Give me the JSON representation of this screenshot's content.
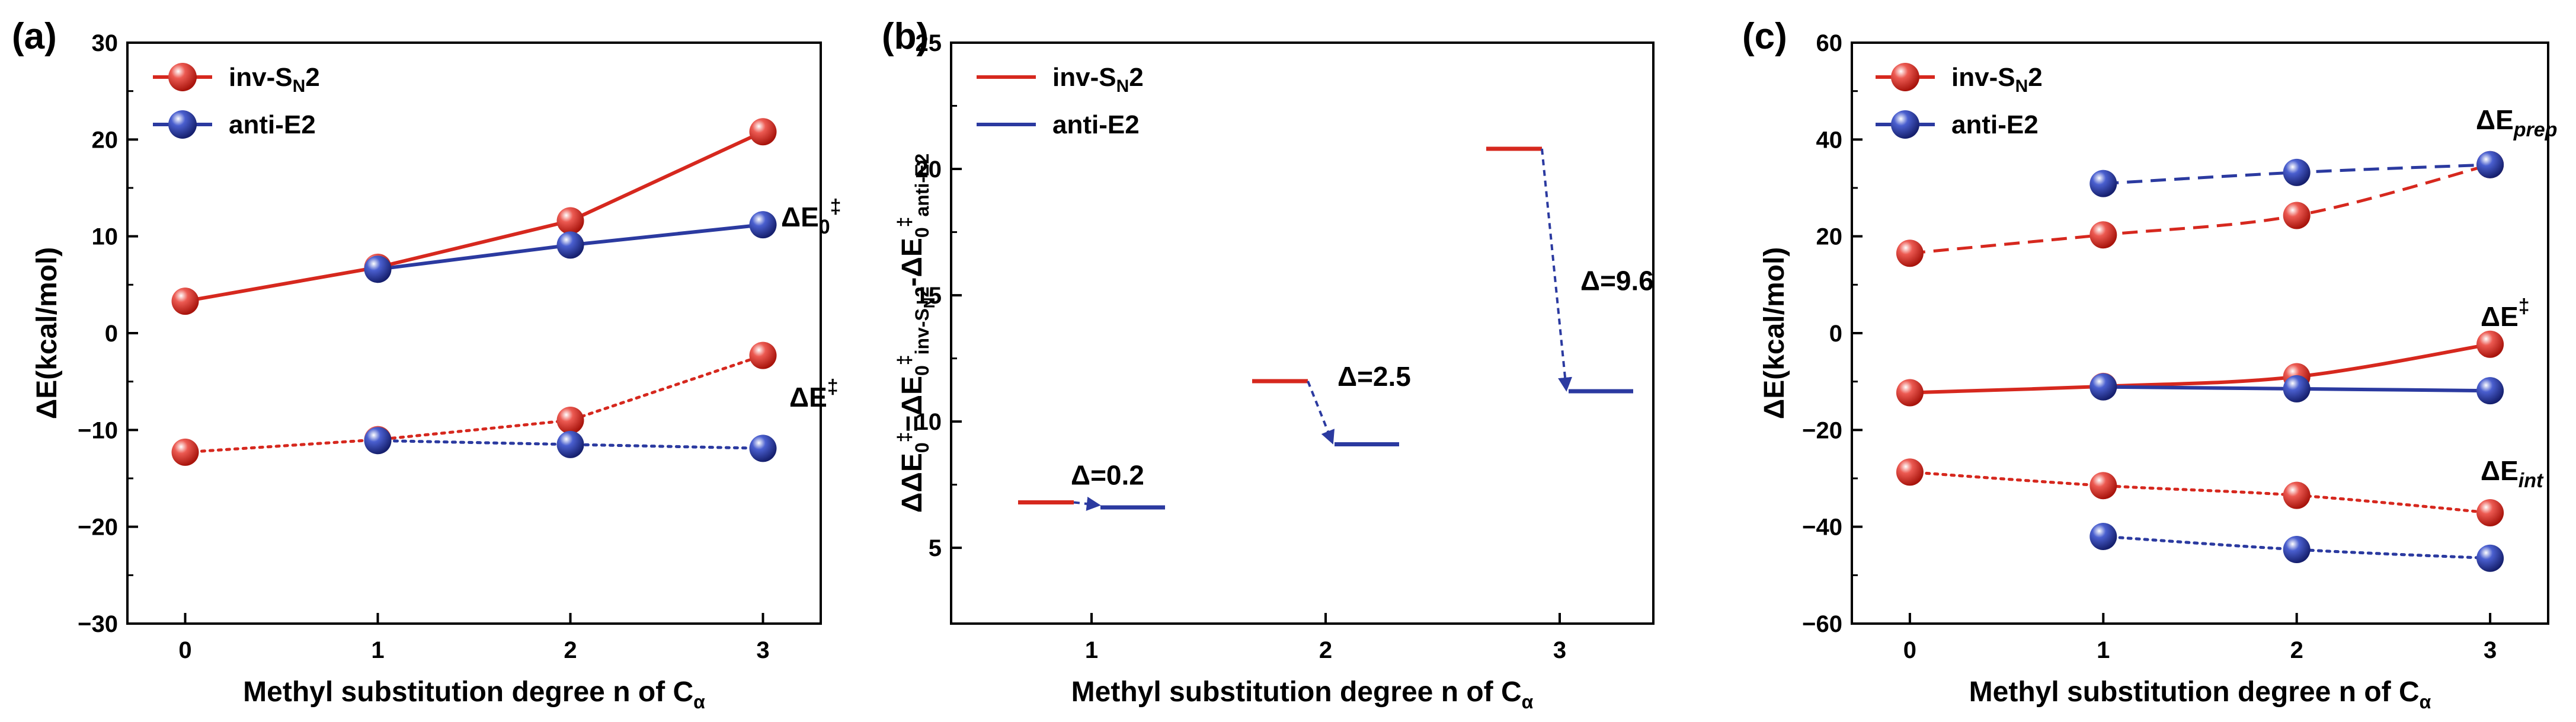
{
  "chart_data": [
    {
      "panel": "(a)",
      "type": "line",
      "x": [
        0,
        1,
        2,
        3
      ],
      "xlabel": "Methyl substitution degree n of C",
      "xlabel_sub": "α",
      "ylabel": "ΔE(kcal/mol)",
      "xlim": [
        -0.3,
        3.3
      ],
      "ylim": [
        -30,
        30
      ],
      "xticks": [
        0,
        1,
        2,
        3
      ],
      "yticks": [
        -30,
        -20,
        -10,
        0,
        10,
        20,
        30
      ],
      "ytick_labels": [
        "−30",
        "−20",
        "−10",
        "0",
        "10",
        "20",
        "30"
      ],
      "legend": [
        {
          "name": "inv-S",
          "sub": "N",
          "after": "2",
          "color": "#d6281e"
        },
        {
          "name": "anti-E2",
          "sub": "",
          "after": "",
          "color": "#2b3aa0"
        }
      ],
      "series": [
        {
          "name": "inv-SN2 ΔE0‡",
          "color": "#d6281e",
          "style": "solid",
          "x": [
            0,
            1,
            2,
            3
          ],
          "values": [
            3.3,
            6.8,
            11.6,
            20.8
          ]
        },
        {
          "name": "anti-E2 ΔE0‡",
          "color": "#2b3aa0",
          "style": "solid",
          "x": [
            1,
            2,
            3
          ],
          "values": [
            6.6,
            9.1,
            11.2
          ]
        },
        {
          "name": "inv-SN2 ΔE‡",
          "color": "#d6281e",
          "style": "dotted",
          "x": [
            0,
            1,
            2,
            3
          ],
          "values": [
            -12.3,
            -11.0,
            -9.0,
            -2.3
          ]
        },
        {
          "name": "anti-E2 ΔE‡",
          "color": "#2b3aa0",
          "style": "dotted",
          "x": [
            1,
            2,
            3
          ],
          "values": [
            -11.1,
            -11.5,
            -11.9
          ]
        }
      ],
      "annotations": [
        {
          "main": "ΔE",
          "sub": "0",
          "sup": "‡",
          "subItalic": false
        },
        {
          "main": "ΔE",
          "sub": "",
          "sup": "‡",
          "subItalic": false
        }
      ]
    },
    {
      "panel": "(b)",
      "type": "energy-level",
      "xlabel": "Methyl substitution degree n of C",
      "xlabel_sub": "α",
      "ylabel": "ΔΔE0‡=ΔE0‡inv-SN2-ΔE0‡anti-E2",
      "xlim": [
        0.4,
        3.4
      ],
      "ylim": [
        2,
        25
      ],
      "xticks": [
        1,
        2,
        3
      ],
      "yticks": [
        5,
        10,
        15,
        20,
        25
      ],
      "legend": [
        {
          "name": "inv-S",
          "sub": "N",
          "after": "2",
          "color": "#d6281e"
        },
        {
          "name": "anti-E2",
          "sub": "",
          "after": "",
          "color": "#2b3aa0"
        }
      ],
      "levels": [
        {
          "n": 1,
          "inv_SN2": 6.8,
          "anti_E2": 6.6,
          "delta_label": "Δ=0.2"
        },
        {
          "n": 2,
          "inv_SN2": 11.6,
          "anti_E2": 9.1,
          "delta_label": "Δ=2.5"
        },
        {
          "n": 3,
          "inv_SN2": 20.8,
          "anti_E2": 11.2,
          "delta_label": "Δ=9.6"
        }
      ]
    },
    {
      "panel": "(c)",
      "type": "line",
      "x": [
        0,
        1,
        2,
        3
      ],
      "xlabel": "Methyl substitution degree n of C",
      "xlabel_sub": "α",
      "ylabel": "ΔE(kcal/mol)",
      "xlim": [
        -0.3,
        3.3
      ],
      "ylim": [
        -60,
        60
      ],
      "xticks": [
        0,
        1,
        2,
        3
      ],
      "yticks": [
        -60,
        -40,
        -20,
        0,
        20,
        40,
        60
      ],
      "ytick_labels": [
        "−60",
        "−40",
        "−20",
        "0",
        "20",
        "40",
        "60"
      ],
      "legend": [
        {
          "name": "inv-S",
          "sub": "N",
          "after": "2",
          "color": "#d6281e"
        },
        {
          "name": "anti-E2",
          "sub": "",
          "after": "",
          "color": "#2b3aa0"
        }
      ],
      "series": [
        {
          "name": "inv-SN2 ΔEprep",
          "color": "#d6281e",
          "style": "dashed",
          "x": [
            0,
            1,
            2,
            3
          ],
          "values": [
            16.5,
            20.3,
            24.3,
            34.8
          ]
        },
        {
          "name": "anti-E2 ΔEprep",
          "color": "#2b3aa0",
          "style": "dashed",
          "x": [
            1,
            2,
            3
          ],
          "values": [
            30.9,
            33.2,
            34.8
          ]
        },
        {
          "name": "inv-SN2 ΔE‡",
          "color": "#d6281e",
          "style": "solid",
          "x": [
            0,
            1,
            2,
            3
          ],
          "values": [
            -12.3,
            -11.0,
            -9.0,
            -2.3
          ]
        },
        {
          "name": "anti-E2 ΔE‡",
          "color": "#2b3aa0",
          "style": "solid",
          "x": [
            1,
            2,
            3
          ],
          "values": [
            -11.1,
            -11.5,
            -11.9
          ]
        },
        {
          "name": "inv-SN2 ΔEint",
          "color": "#d6281e",
          "style": "dotted",
          "x": [
            0,
            1,
            2,
            3
          ],
          "values": [
            -28.7,
            -31.5,
            -33.5,
            -37.1
          ]
        },
        {
          "name": "anti-E2 ΔEint",
          "color": "#2b3aa0",
          "style": "dotted",
          "x": [
            1,
            2,
            3
          ],
          "values": [
            -42.0,
            -44.7,
            -46.5
          ]
        }
      ],
      "annotations": [
        {
          "main": "ΔE",
          "sub": "prep",
          "sup": "",
          "subItalic": true
        },
        {
          "main": "ΔE",
          "sub": "",
          "sup": "‡",
          "subItalic": false
        },
        {
          "main": "ΔE",
          "sub": "int",
          "sup": "",
          "subItalic": true
        }
      ]
    }
  ]
}
